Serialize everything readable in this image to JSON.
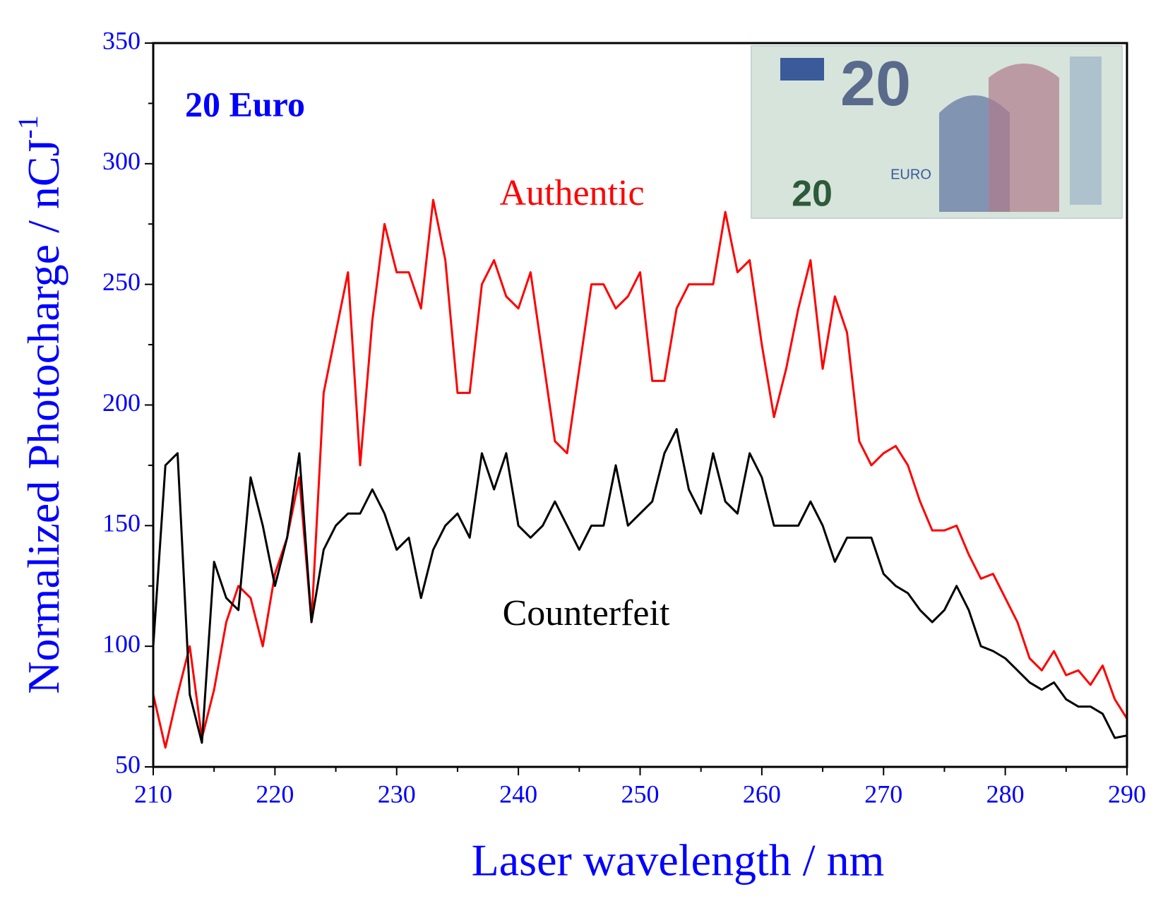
{
  "chart_data": {
    "type": "line",
    "annotation": "20 Euro",
    "xlabel": "Laser wavelength / nm",
    "ylabel": "Normalized Photocharge / nCJ",
    "ylabel_sup": "-1",
    "banknote": {
      "big": "20",
      "small": "20",
      "word": "EURO"
    },
    "x": [
      210,
      211,
      212,
      213,
      214,
      215,
      216,
      217,
      218,
      219,
      220,
      221,
      222,
      223,
      224,
      225,
      226,
      227,
      228,
      229,
      230,
      231,
      232,
      233,
      234,
      235,
      236,
      237,
      238,
      239,
      240,
      241,
      242,
      243,
      244,
      245,
      246,
      247,
      248,
      249,
      250,
      251,
      252,
      253,
      254,
      255,
      256,
      257,
      258,
      259,
      260,
      261,
      262,
      263,
      264,
      265,
      266,
      267,
      268,
      269,
      270,
      271,
      272,
      273,
      274,
      275,
      276,
      277,
      278,
      279,
      280,
      281,
      282,
      283,
      284,
      285,
      286,
      287,
      288,
      289,
      290
    ],
    "series": [
      {
        "name": "Authentic",
        "color": "#ff0000",
        "values": [
          80,
          58,
          80,
          100,
          62,
          82,
          110,
          125,
          120,
          100,
          130,
          145,
          170,
          110,
          205,
          230,
          255,
          175,
          235,
          275,
          255,
          255,
          240,
          285,
          260,
          205,
          205,
          250,
          260,
          245,
          240,
          255,
          220,
          185,
          180,
          215,
          250,
          250,
          240,
          245,
          255,
          210,
          210,
          240,
          250,
          250,
          250,
          280,
          255,
          260,
          225,
          195,
          215,
          240,
          260,
          215,
          245,
          230,
          185,
          175,
          180,
          183,
          175,
          160,
          148,
          148,
          150,
          138,
          128,
          130,
          120,
          110,
          95,
          90,
          98,
          88,
          90,
          84,
          92,
          78,
          70
        ]
      },
      {
        "name": "Counterfeit",
        "color": "#000000",
        "values": [
          100,
          175,
          180,
          80,
          60,
          135,
          120,
          115,
          170,
          150,
          125,
          145,
          180,
          110,
          140,
          150,
          155,
          155,
          165,
          155,
          140,
          145,
          120,
          140,
          150,
          155,
          145,
          180,
          165,
          180,
          150,
          145,
          150,
          160,
          150,
          140,
          150,
          150,
          175,
          150,
          155,
          160,
          180,
          190,
          165,
          155,
          180,
          160,
          155,
          180,
          170,
          150,
          150,
          150,
          160,
          150,
          135,
          145,
          145,
          145,
          130,
          125,
          122,
          115,
          110,
          115,
          125,
          115,
          100,
          98,
          95,
          90,
          85,
          82,
          85,
          78,
          75,
          75,
          72,
          62,
          63
        ]
      }
    ],
    "xlim": [
      210,
      290
    ],
    "xticks": [
      210,
      220,
      230,
      240,
      250,
      260,
      270,
      280,
      290
    ],
    "ylim": [
      50,
      350
    ],
    "yticks": [
      50,
      100,
      150,
      200,
      250,
      300,
      350
    ],
    "axis_color": "#0000ff"
  }
}
